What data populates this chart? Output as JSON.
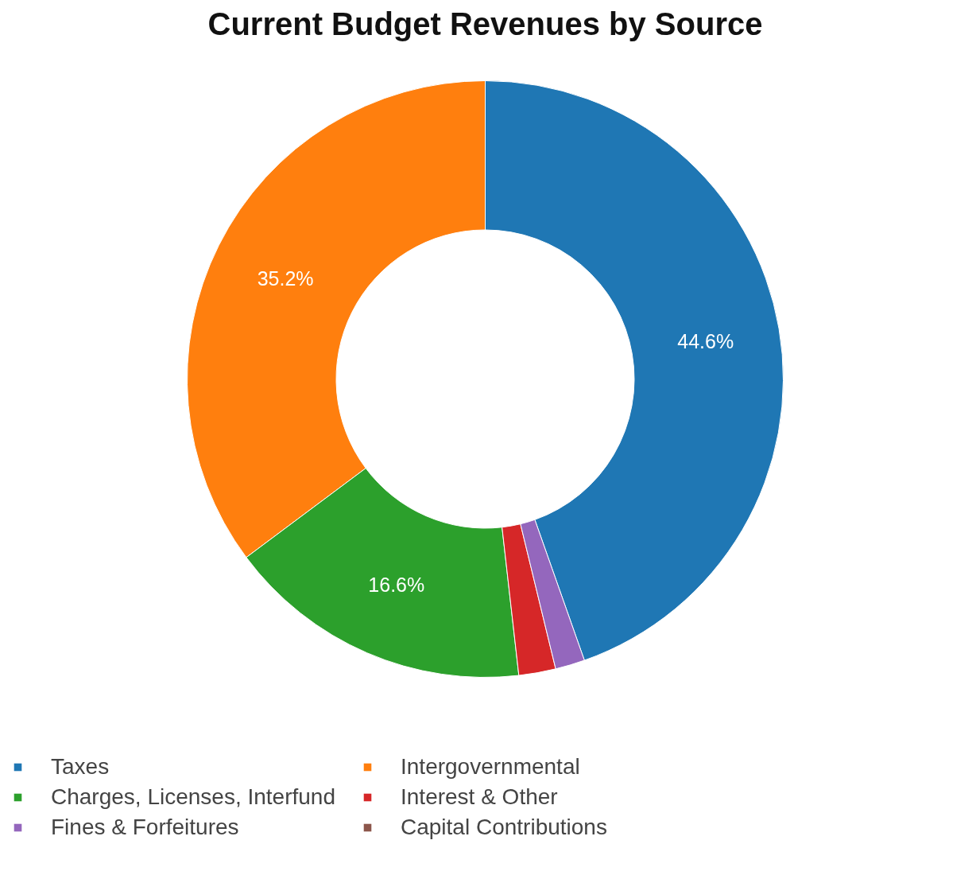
{
  "chart_data": {
    "type": "donut",
    "title": "Current Budget Revenues by Source",
    "categories": [
      "Taxes",
      "Intergovernmental",
      "Charges, Licenses, Interfund",
      "Interest & Other",
      "Fines & Forfeitures",
      "Capital Contributions"
    ],
    "values": [
      44.6,
      35.2,
      16.6,
      2.0,
      1.6,
      0
    ],
    "colors": [
      "#1f77b4",
      "#ff7f0e",
      "#2ca02c",
      "#d62728",
      "#9467bd",
      "#8c564b"
    ],
    "value_labels": [
      "44.6%",
      "35.2%",
      "16.6%",
      null,
      null,
      null
    ],
    "legend": "bottom"
  }
}
